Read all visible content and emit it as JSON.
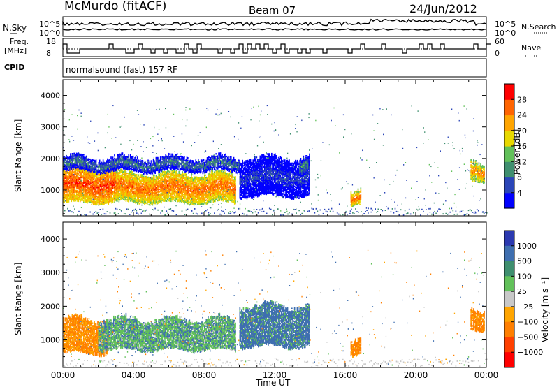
{
  "header": {
    "station": "McMurdo (fitACF)",
    "beam": "Beam 07",
    "date": "24/Jun/2012"
  },
  "top_panels": {
    "noise": {
      "left_label": "N.Sky",
      "right_label": "N.Search",
      "left_ticks": [
        "10^5",
        "10^0"
      ],
      "right_ticks": [
        "10^5",
        "10^0"
      ]
    },
    "freq": {
      "left_label_1": "Freq.",
      "left_label_2": "[MHz]",
      "right_label": "Nave",
      "left_ticks": [
        "18",
        "8"
      ],
      "right_ticks": [
        "60",
        "0"
      ]
    },
    "cpid": {
      "label": "CPID",
      "text": "normalsound (fast) 157 RF"
    }
  },
  "colors": {
    "power_scale": [
      "#0000ff",
      "#2b46b8",
      "#3f8f6f",
      "#62c15a",
      "#e8d800",
      "#ffa500",
      "#ff6400",
      "#ff0000"
    ],
    "velocity_scale": [
      "#2b39b0",
      "#3f6fb0",
      "#3f8f6f",
      "#62c15a",
      "#c8c8c8",
      "#ffa500",
      "#ff7f00",
      "#ff4000",
      "#ff0000"
    ]
  },
  "chart_data": [
    {
      "type": "heatmap",
      "name": "power",
      "ylabel": "Slant Range [km]",
      "xlabel": "",
      "xlim": [
        "00:00",
        "24:00"
      ],
      "ylim": [
        180,
        4500
      ],
      "yticks": [
        "1000",
        "2000",
        "3000",
        "4000"
      ],
      "colorbar": {
        "label": "Power [dB]",
        "range": [
          0,
          32
        ],
        "ticks": [
          "4",
          "8",
          "12",
          "16",
          "20",
          "24",
          "28"
        ]
      },
      "regions": [
        {
          "t0": 0.0,
          "t1": 3.0,
          "r0": 600,
          "r1": 1700,
          "level": 28
        },
        {
          "t0": 3.0,
          "t1": 9.8,
          "r0": 600,
          "r1": 1500,
          "level": 26
        },
        {
          "t0": 0.0,
          "t1": 10.0,
          "r0": 1600,
          "r1": 2000,
          "level": 10
        },
        {
          "t0": 10.0,
          "t1": 14.0,
          "r0": 800,
          "r1": 2000,
          "level": 6
        },
        {
          "t0": 13.4,
          "t1": 13.9,
          "r0": 1500,
          "r1": 2000,
          "level": 12
        },
        {
          "t0": 16.3,
          "t1": 16.9,
          "r0": 500,
          "r1": 900,
          "level": 26
        },
        {
          "t0": 23.1,
          "t1": 23.9,
          "r0": 1300,
          "r1": 1900,
          "level": 24
        }
      ]
    },
    {
      "type": "heatmap",
      "name": "velocity",
      "ylabel": "Slant Range [km]",
      "xlabel": "Time UT",
      "xlim": [
        "00:00",
        "24:00"
      ],
      "ylim": [
        180,
        4500
      ],
      "xticks": [
        "00:00",
        "04:00",
        "08:00",
        "12:00",
        "16:00",
        "20:00",
        "00:00"
      ],
      "yticks": [
        "1000",
        "2000",
        "3000",
        "4000"
      ],
      "colorbar": {
        "label": "Velocity [m s⁻¹]",
        "ticks": [
          "1000",
          "500",
          "100",
          "25",
          "−25",
          "−100",
          "−500",
          "−1000"
        ]
      },
      "regions": [
        {
          "t0": 0.0,
          "t1": 2.5,
          "r0": 600,
          "r1": 1600,
          "level": -120
        },
        {
          "t0": 2.0,
          "t1": 9.8,
          "r0": 700,
          "r1": 1600,
          "level": 80
        },
        {
          "t0": 10.0,
          "t1": 14.0,
          "r0": 800,
          "r1": 2000,
          "level": 200
        },
        {
          "t0": 16.3,
          "t1": 16.9,
          "r0": 500,
          "r1": 900,
          "level": -150
        },
        {
          "t0": 23.1,
          "t1": 23.9,
          "r0": 1300,
          "r1": 1900,
          "level": -150
        }
      ]
    }
  ]
}
